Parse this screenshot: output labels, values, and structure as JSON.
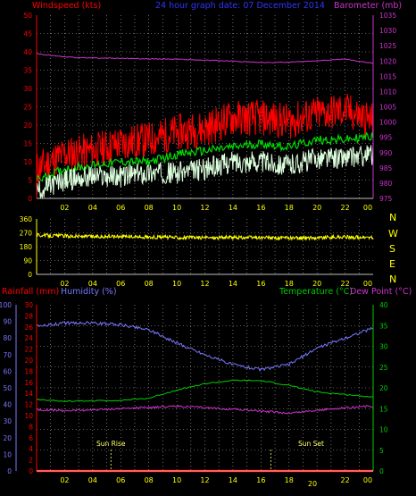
{
  "colors": {
    "background": "#000000",
    "axis_text": "#ffff00",
    "grid": "#ffffff",
    "windspeed": "#ff0000",
    "wind_avg": "#00dd00",
    "wind_lull": "#ddffdd",
    "barometer": "#cc33cc",
    "wind_dir": "#ffff00",
    "rainfall": "#ff0000",
    "humidity": "#7777ff",
    "temperature": "#00cc00",
    "dew_point": "#cc33cc",
    "sun_marker": "#ffff66"
  },
  "top_panel": {
    "title_left": "Windspeed (kts)",
    "title_center": "24 hour graph date: 07 December 2014",
    "title_right": "Barometer (mb)",
    "left_ticks": [
      "0",
      "5",
      "10",
      "15",
      "20",
      "25",
      "30",
      "35",
      "40",
      "45",
      "50"
    ],
    "right_ticks": [
      "975",
      "980",
      "985",
      "990",
      "995",
      "1000",
      "1005",
      "1010",
      "1015",
      "1020",
      "1025",
      "1030",
      "1035"
    ],
    "x_ticks": [
      "02",
      "04",
      "06",
      "08",
      "10",
      "12",
      "14",
      "16",
      "18",
      "20",
      "22",
      "00"
    ]
  },
  "mid_panel": {
    "left_ticks": [
      "0",
      "90",
      "180",
      "270",
      "360"
    ],
    "compass": [
      "N",
      "W",
      "S",
      "E",
      "N"
    ],
    "x_ticks": [
      "02",
      "04",
      "06",
      "08",
      "10",
      "12",
      "14",
      "16",
      "18",
      "20",
      "22",
      "00"
    ]
  },
  "bottom_panel": {
    "title_left_1": "Rainfall (mm)",
    "title_left_2": "Humidity (%)",
    "title_right_1": "Temperature (°C)",
    "title_right_2": "Dew Point (°C)",
    "humidity_ticks": [
      "0",
      "10",
      "20",
      "30",
      "40",
      "50",
      "60",
      "70",
      "80",
      "90",
      "100"
    ],
    "rain_ticks": [
      "0",
      "2",
      "4",
      "6",
      "8",
      "10",
      "12",
      "14",
      "16",
      "18",
      "20",
      "22",
      "24",
      "26",
      "28",
      "30"
    ],
    "temp_ticks": [
      "0",
      "5",
      "10",
      "15",
      "20",
      "25",
      "30",
      "35",
      "40"
    ],
    "x_ticks": [
      "02",
      "04",
      "06",
      "08",
      "10",
      "12",
      "14",
      "16",
      "18",
      "20",
      "22",
      "00"
    ],
    "x_ticks_extra": "20",
    "sun_rise": "Sun Rise",
    "sun_set": "Sun Set"
  },
  "chart_data": [
    {
      "type": "line",
      "title": "24 hour graph date: 07 December 2014",
      "ylabel": "Windspeed (kts)",
      "y2label": "Barometer (mb)",
      "ylim": [
        0,
        50
      ],
      "y2lim": [
        972,
        1035
      ],
      "x": [
        0,
        2,
        4,
        6,
        8,
        10,
        12,
        14,
        16,
        18,
        20,
        22,
        24
      ],
      "series": [
        {
          "name": "Windspeed (kts)",
          "axis": "left",
          "values": [
            8,
            12,
            13,
            15,
            16,
            18,
            19,
            22,
            22,
            21,
            23,
            24,
            21
          ]
        },
        {
          "name": "",
          "axis": "left",
          "values": [
            5,
            8,
            9,
            10,
            10,
            12,
            13,
            14,
            15,
            14,
            16,
            16,
            17
          ]
        },
        {
          "name": "",
          "axis": "left",
          "values": [
            2,
            5,
            6,
            6,
            7,
            7,
            8,
            10,
            10,
            9,
            11,
            11,
            12
          ]
        },
        {
          "name": "Barometer (mb)",
          "axis": "right",
          "values": [
            1021.8,
            1020.6,
            1020.3,
            1020.2,
            1020.0,
            1019.9,
            1019.5,
            1019.2,
            1018.7,
            1018.8,
            1019.3,
            1019.9,
            1018.5
          ]
        }
      ]
    },
    {
      "type": "line",
      "ylim": [
        0,
        360
      ],
      "x": [
        0,
        2,
        4,
        6,
        8,
        10,
        12,
        14,
        16,
        18,
        20,
        22,
        24
      ],
      "series": [
        {
          "name": "",
          "values": [
            255,
            250,
            245,
            248,
            242,
            240,
            238,
            240,
            238,
            236,
            238,
            242,
            238
          ]
        }
      ]
    },
    {
      "type": "line",
      "ylabel": "Rainfall (mm) / Humidity (%)",
      "y2label": "Temperature (°C) / Dew Point (°C)",
      "ylim": [
        0,
        100
      ],
      "y2lim": [
        0,
        40
      ],
      "x": [
        0,
        2,
        4,
        6,
        8,
        10,
        12,
        14,
        16,
        18,
        20,
        22,
        24
      ],
      "series": [
        {
          "name": "Rainfall (mm)",
          "axis": "left_rain",
          "values": [
            0,
            0,
            0,
            0,
            0,
            0,
            0,
            0,
            0,
            0,
            0,
            0,
            0
          ]
        },
        {
          "name": "Humidity (%)",
          "axis": "left",
          "values": [
            87,
            89,
            89,
            88,
            85,
            77,
            70,
            64,
            61,
            64,
            74,
            80,
            86
          ]
        },
        {
          "name": "Temperature (°C)",
          "axis": "right",
          "values": [
            17.2,
            16.8,
            16.9,
            17.0,
            17.5,
            19.5,
            21.0,
            21.8,
            21.7,
            20.6,
            19.0,
            18.4,
            17.8
          ]
        },
        {
          "name": "Dew Point (°C)",
          "axis": "right",
          "values": [
            14.8,
            14.5,
            14.7,
            15.0,
            15.3,
            15.6,
            15.2,
            14.9,
            14.4,
            13.9,
            14.6,
            15.2,
            15.6
          ]
        }
      ],
      "annotations": [
        "Sun Rise",
        "Sun Set"
      ]
    }
  ]
}
